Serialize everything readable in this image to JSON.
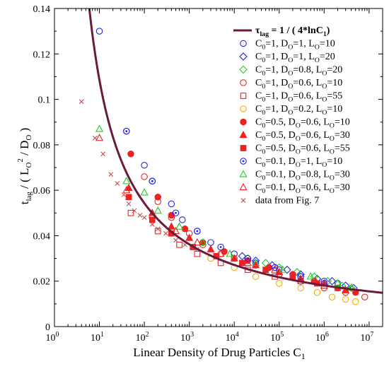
{
  "chart_data": {
    "type": "scatter",
    "title": "",
    "xlabel": "Linear Density of Drug Particles  C",
    "xlabel_sub": "1",
    "ylabel": {
      "t": "t",
      "t_sub": "lag",
      "rest1": "  /  ( L",
      "L_sub": "O",
      "sq": "2",
      "rest2": " / D",
      "D_sub": "O",
      "rest3": " )"
    },
    "x_scale": "log",
    "xlim": [
      1,
      20000000
    ],
    "ylim": [
      0,
      0.14
    ],
    "x_ticks": [
      {
        "value": 1,
        "base": "10",
        "exp": "0"
      },
      {
        "value": 10,
        "base": "10",
        "exp": "1"
      },
      {
        "value": 100,
        "base": "10",
        "exp": "2"
      },
      {
        "value": 1000,
        "base": "10",
        "exp": "3"
      },
      {
        "value": 10000,
        "base": "10",
        "exp": "4"
      },
      {
        "value": 100000,
        "base": "10",
        "exp": "5"
      },
      {
        "value": 1000000,
        "base": "10",
        "exp": "6"
      },
      {
        "value": 10000000,
        "base": "10",
        "exp": "7"
      }
    ],
    "y_ticks": [
      "0",
      "0.02",
      "0.04",
      "0.06",
      "0.08",
      "0.1",
      "0.12",
      "0.14"
    ],
    "y_tick_values": [
      0,
      0.02,
      0.04,
      0.06,
      0.08,
      0.1,
      0.12,
      0.14
    ],
    "grid": false,
    "legend_position": "top-right",
    "theory_curve": {
      "label_parts": [
        {
          "t": "τ",
          "s": ""
        },
        {
          "t": "lag",
          "s": "sub"
        },
        {
          "t": " = 1 / ( 4*lnC",
          "s": ""
        },
        {
          "t": "1",
          "s": "sub"
        },
        {
          "t": ")",
          "s": ""
        }
      ],
      "color": "#6b1a3d",
      "formula": "1/(4*ln(x))"
    },
    "series": [
      {
        "name": "C0=1,   DO=1,   LO=10",
        "label_parts": [
          {
            "t": "C",
            "s": ""
          },
          {
            "t": "0",
            "s": "sub"
          },
          {
            "t": "=1,   D",
            "s": ""
          },
          {
            "t": "O",
            "s": "sub"
          },
          {
            "t": "=1,   L",
            "s": ""
          },
          {
            "t": "O",
            "s": "sub"
          },
          {
            "t": "=10",
            "s": ""
          }
        ],
        "marker": "circle",
        "filled": false,
        "color": "#2222ee",
        "points": [
          [
            10,
            0.13
          ],
          [
            40,
            0.086
          ],
          [
            100,
            0.071
          ],
          [
            150,
            0.064
          ],
          [
            400,
            0.054
          ],
          [
            700,
            0.047
          ],
          [
            1500,
            0.042
          ],
          [
            3000,
            0.037
          ],
          [
            10000,
            0.032
          ],
          [
            30000,
            0.028
          ],
          [
            100000,
            0.025
          ],
          [
            300000,
            0.022
          ],
          [
            1000000,
            0.02
          ],
          [
            2000000,
            0.019
          ]
        ]
      },
      {
        "name": "C0=1,   DO=1,   LO=20",
        "label_parts": [
          {
            "t": "C",
            "s": ""
          },
          {
            "t": "0",
            "s": "sub"
          },
          {
            "t": "=1,   D",
            "s": ""
          },
          {
            "t": "O",
            "s": "sub"
          },
          {
            "t": "=1,   L",
            "s": ""
          },
          {
            "t": "O",
            "s": "sub"
          },
          {
            "t": "=20",
            "s": ""
          }
        ],
        "marker": "diamond",
        "filled": false,
        "color": "#2222ee",
        "points": [
          [
            15000,
            0.031
          ],
          [
            30000,
            0.029
          ],
          [
            70000,
            0.027
          ],
          [
            150000,
            0.025
          ],
          [
            300000,
            0.023
          ],
          [
            700000,
            0.021
          ],
          [
            1500000,
            0.02
          ],
          [
            3000000,
            0.018
          ],
          [
            4500000,
            0.017
          ]
        ]
      },
      {
        "name": "C0=1,   DO=0.8, LO=20",
        "label_parts": [
          {
            "t": "C",
            "s": ""
          },
          {
            "t": "0",
            "s": "sub"
          },
          {
            "t": "=1,   D",
            "s": ""
          },
          {
            "t": "O",
            "s": "sub"
          },
          {
            "t": "=0.8, L",
            "s": ""
          },
          {
            "t": "O",
            "s": "sub"
          },
          {
            "t": "=20",
            "s": ""
          }
        ],
        "marker": "diamond",
        "filled": false,
        "color": "#22cc22",
        "points": [
          [
            20000,
            0.03
          ],
          [
            50000,
            0.028
          ],
          [
            100000,
            0.026
          ],
          [
            250000,
            0.024
          ],
          [
            600000,
            0.022
          ],
          [
            1200000,
            0.02
          ],
          [
            2500000,
            0.018
          ],
          [
            4000000,
            0.017
          ]
        ]
      },
      {
        "name": "C0=1,   DO=0.6, LO=10",
        "label_parts": [
          {
            "t": "C",
            "s": ""
          },
          {
            "t": "0",
            "s": "sub"
          },
          {
            "t": "=1,   D",
            "s": ""
          },
          {
            "t": "O",
            "s": "sub"
          },
          {
            "t": "=0.6, L",
            "s": ""
          },
          {
            "t": "O",
            "s": "sub"
          },
          {
            "t": "=10",
            "s": ""
          }
        ],
        "marker": "circle",
        "filled": false,
        "color": "#ee2222",
        "points": [
          [
            100,
            0.066
          ],
          [
            200,
            0.055
          ],
          [
            400,
            0.048
          ],
          [
            1000,
            0.041
          ],
          [
            2000,
            0.036
          ],
          [
            5000,
            0.032
          ],
          [
            10000,
            0.03
          ],
          [
            30000,
            0.027
          ],
          [
            100000,
            0.023
          ],
          [
            300000,
            0.02
          ],
          [
            1000000,
            0.017
          ],
          [
            3000000,
            0.015
          ],
          [
            8000000,
            0.013
          ]
        ]
      },
      {
        "name": "C0=1,   DO=0.6, LO=55",
        "label_parts": [
          {
            "t": "C",
            "s": ""
          },
          {
            "t": "0",
            "s": "sub"
          },
          {
            "t": "=1,   D",
            "s": ""
          },
          {
            "t": "O",
            "s": "sub"
          },
          {
            "t": "=0.6, L",
            "s": ""
          },
          {
            "t": "O",
            "s": "sub"
          },
          {
            "t": "=55",
            "s": ""
          }
        ],
        "marker": "square",
        "filled": false,
        "color": "#ee2222",
        "points": [
          [
            50,
            0.05
          ],
          [
            200,
            0.042
          ],
          [
            600,
            0.036
          ],
          [
            1500,
            0.032
          ],
          [
            5000,
            0.028
          ],
          [
            20000,
            0.025
          ],
          [
            80000,
            0.022
          ],
          [
            300000,
            0.02
          ],
          [
            1000000,
            0.018
          ]
        ]
      },
      {
        "name": "C0=1,   DO=0.2, LO=10",
        "label_parts": [
          {
            "t": "C",
            "s": ""
          },
          {
            "t": "0",
            "s": "sub"
          },
          {
            "t": "=1,   D",
            "s": ""
          },
          {
            "t": "O",
            "s": "sub"
          },
          {
            "t": "=0.2, L",
            "s": ""
          },
          {
            "t": "O",
            "s": "sub"
          },
          {
            "t": "=10",
            "s": ""
          }
        ],
        "marker": "circle",
        "filled": false,
        "color": "#ffaa00",
        "points": [
          [
            3000,
            0.03
          ],
          [
            10000,
            0.026
          ],
          [
            30000,
            0.022
          ],
          [
            100000,
            0.019
          ],
          [
            300000,
            0.017
          ],
          [
            700000,
            0.015
          ],
          [
            1500000,
            0.013
          ],
          [
            3000000,
            0.012
          ],
          [
            5000000,
            0.011
          ]
        ]
      },
      {
        "name": "C0=0.5, DO=0.6, LO=10",
        "label_parts": [
          {
            "t": "C",
            "s": ""
          },
          {
            "t": "0",
            "s": "sub"
          },
          {
            "t": "=0.5, D",
            "s": ""
          },
          {
            "t": "O",
            "s": "sub"
          },
          {
            "t": "=0.6, L",
            "s": ""
          },
          {
            "t": "O",
            "s": "sub"
          },
          {
            "t": "=10",
            "s": ""
          }
        ],
        "marker": "circle",
        "filled": true,
        "color": "#ee2222",
        "points": [
          [
            50,
            0.076
          ],
          [
            200,
            0.057
          ],
          [
            400,
            0.049
          ],
          [
            800,
            0.043
          ],
          [
            2000,
            0.037
          ],
          [
            6000,
            0.033
          ],
          [
            20000,
            0.029
          ],
          [
            60000,
            0.026
          ],
          [
            200000,
            0.023
          ],
          [
            600000,
            0.02
          ],
          [
            2000000,
            0.017
          ],
          [
            5000000,
            0.015
          ]
        ]
      },
      {
        "name": "C0=0.5, DO=0.6, LO=30",
        "label_parts": [
          {
            "t": "C",
            "s": ""
          },
          {
            "t": "0",
            "s": "sub"
          },
          {
            "t": "=0.5, D",
            "s": ""
          },
          {
            "t": "O",
            "s": "sub"
          },
          {
            "t": "=0.6, L",
            "s": ""
          },
          {
            "t": "O",
            "s": "sub"
          },
          {
            "t": "=30",
            "s": ""
          }
        ],
        "marker": "triangle",
        "filled": true,
        "color": "#ee2222",
        "points": [
          [
            45,
            0.061
          ],
          [
            150,
            0.05
          ],
          [
            400,
            0.044
          ],
          [
            1000,
            0.039
          ],
          [
            3000,
            0.034
          ],
          [
            10000,
            0.03
          ],
          [
            30000,
            0.027
          ],
          [
            100000,
            0.024
          ],
          [
            300000,
            0.021
          ],
          [
            1000000,
            0.019
          ],
          [
            3000000,
            0.016
          ]
        ]
      },
      {
        "name": "C0=0.5, DO=0.6, LO=55",
        "label_parts": [
          {
            "t": "C",
            "s": ""
          },
          {
            "t": "0",
            "s": "sub"
          },
          {
            "t": "=0.5, D",
            "s": ""
          },
          {
            "t": "O",
            "s": "sub"
          },
          {
            "t": "=0.6, L",
            "s": ""
          },
          {
            "t": "O",
            "s": "sub"
          },
          {
            "t": "=55",
            "s": ""
          }
        ],
        "marker": "square",
        "filled": true,
        "color": "#ee2222",
        "points": [
          [
            45,
            0.057
          ],
          [
            150,
            0.047
          ],
          [
            400,
            0.041
          ],
          [
            1200,
            0.035
          ],
          [
            4000,
            0.031
          ],
          [
            15000,
            0.028
          ],
          [
            50000,
            0.025
          ],
          [
            200000,
            0.022
          ],
          [
            700000,
            0.019
          ],
          [
            2000000,
            0.017
          ]
        ]
      },
      {
        "name": "C0=0.1, DO=1,   LO=10",
        "label_parts": [
          {
            "t": "C",
            "s": ""
          },
          {
            "t": "0",
            "s": "sub"
          },
          {
            "t": "=0.1, D",
            "s": ""
          },
          {
            "t": "O",
            "s": "sub"
          },
          {
            "t": "=1,   L",
            "s": ""
          },
          {
            "t": "O",
            "s": "sub"
          },
          {
            "t": "=10",
            "s": ""
          }
        ],
        "marker": "circle-dot",
        "filled": false,
        "color": "#2222ee",
        "points": [
          [
            40,
            0.086
          ],
          [
            150,
            0.064
          ],
          [
            500,
            0.05
          ],
          [
            1500,
            0.042
          ],
          [
            5000,
            0.035
          ],
          [
            20000,
            0.03
          ],
          [
            80000,
            0.026
          ],
          [
            300000,
            0.022
          ],
          [
            1000000,
            0.019
          ]
        ]
      },
      {
        "name": "C0=0.1, DO=0.8, LO=30",
        "label_parts": [
          {
            "t": "C",
            "s": ""
          },
          {
            "t": "0",
            "s": "sub"
          },
          {
            "t": "=0.1, D",
            "s": ""
          },
          {
            "t": "O",
            "s": "sub"
          },
          {
            "t": "=0.8, L",
            "s": ""
          },
          {
            "t": "O",
            "s": "sub"
          },
          {
            "t": "=30",
            "s": ""
          }
        ],
        "marker": "triangle",
        "filled": false,
        "color": "#22cc22",
        "points": [
          [
            10,
            0.087
          ],
          [
            40,
            0.064
          ],
          [
            100,
            0.059
          ],
          [
            200,
            0.051
          ],
          [
            600,
            0.044
          ],
          [
            2000,
            0.037
          ],
          [
            8000,
            0.032
          ],
          [
            30000,
            0.028
          ],
          [
            120000,
            0.025
          ],
          [
            500000,
            0.022
          ],
          [
            2000000,
            0.019
          ],
          [
            4000000,
            0.017
          ]
        ]
      },
      {
        "name": "C0=0.1, DO=0.6, LO=30",
        "label_parts": [
          {
            "t": "C",
            "s": ""
          },
          {
            "t": "0",
            "s": "sub"
          },
          {
            "t": "=0.1, D",
            "s": ""
          },
          {
            "t": "O",
            "s": "sub"
          },
          {
            "t": "=0.6, L",
            "s": ""
          },
          {
            "t": "O",
            "s": "sub"
          },
          {
            "t": "=30",
            "s": ""
          }
        ],
        "marker": "triangle",
        "filled": false,
        "color": "#ee2222",
        "points": [
          [
            10,
            0.083
          ],
          [
            40,
            0.06
          ],
          [
            150,
            0.049
          ],
          [
            500,
            0.042
          ],
          [
            1500,
            0.037
          ],
          [
            5000,
            0.032
          ],
          [
            20000,
            0.028
          ],
          [
            80000,
            0.025
          ],
          [
            300000,
            0.021
          ],
          [
            1000000,
            0.018
          ],
          [
            3000000,
            0.016
          ]
        ]
      },
      {
        "name": "data from Fig. 7",
        "label_parts": [
          {
            "t": "data from Fig. 7",
            "s": ""
          }
        ],
        "marker": "x",
        "filled": false,
        "color": "#bb4444",
        "points": [
          [
            4,
            0.099
          ],
          [
            8,
            0.083
          ],
          [
            12,
            0.076
          ],
          [
            18,
            0.067
          ],
          [
            25,
            0.063
          ],
          [
            35,
            0.058
          ],
          [
            45,
            0.054
          ],
          [
            60,
            0.051
          ],
          [
            80,
            0.049
          ],
          [
            100,
            0.048
          ],
          [
            150,
            0.045
          ],
          [
            200,
            0.043
          ],
          [
            300,
            0.041
          ],
          [
            500,
            0.038
          ],
          [
            800,
            0.036
          ],
          [
            1500,
            0.034
          ]
        ]
      }
    ]
  }
}
